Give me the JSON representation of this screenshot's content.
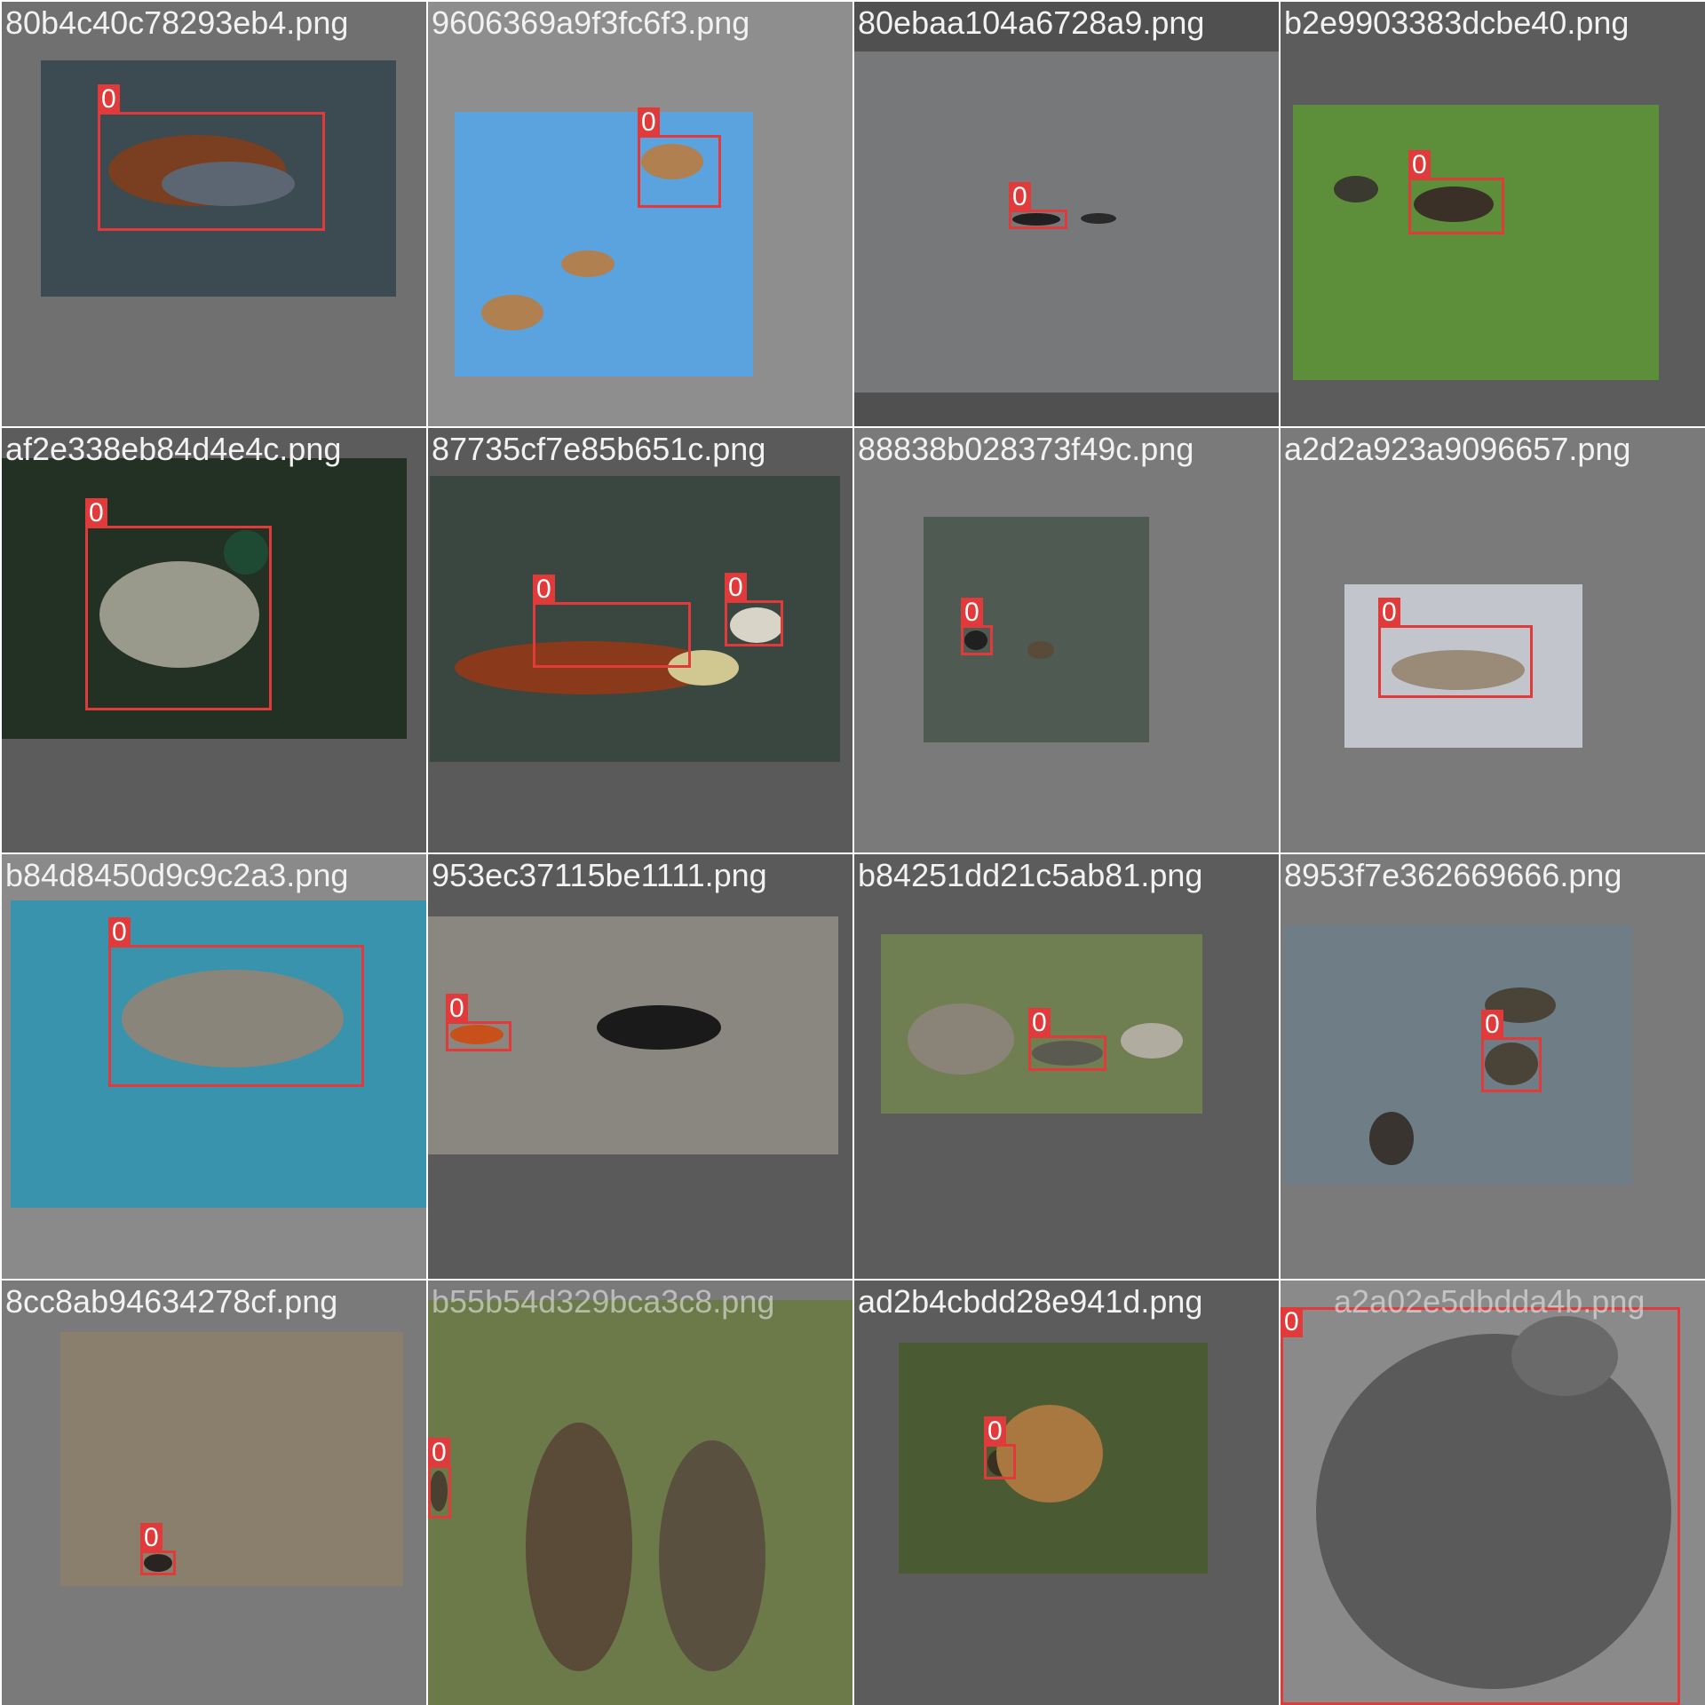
{
  "grid": {
    "columns": 4,
    "rows": 4
  },
  "tiles": [
    {
      "filename": "80b4c40c78293eb4.png",
      "labels": [
        "0"
      ],
      "background": "#707070",
      "photo_color": "#3c4a52"
    },
    {
      "filename": "9606369a9f3fc6f3.png",
      "labels": [
        "0"
      ],
      "background": "#8e8e8e",
      "photo_color": "#5ba3de"
    },
    {
      "filename": "80ebaa104a6728a9.png",
      "labels": [
        "0"
      ],
      "background": "#505050",
      "photo_color": "#76787a"
    },
    {
      "filename": "b2e9903383dcbe40.png",
      "labels": [
        "0"
      ],
      "background": "#5c5c5c",
      "photo_color": "#5d8f3a"
    },
    {
      "filename": "af2e338eb84d4e4c.png",
      "labels": [
        "0"
      ],
      "background": "#5c5c5c",
      "photo_color": "#233024"
    },
    {
      "filename": "87735cf7e85b651c.png",
      "labels": [
        "0",
        "0"
      ],
      "background": "#5a5a5a",
      "photo_color": "#3a4640"
    },
    {
      "filename": "88838b028373f49c.png",
      "labels": [
        "0"
      ],
      "background": "#7a7a7a",
      "photo_color": "#4e5a52"
    },
    {
      "filename": "a2d2a923a9096657.png",
      "labels": [
        "0"
      ],
      "background": "#7a7a7a",
      "photo_color": "#c2c6cc"
    },
    {
      "filename": "b84d8450d9c9c2a3.png",
      "labels": [
        "0"
      ],
      "background": "#8a8a8a",
      "photo_color": "#3a93ad"
    },
    {
      "filename": "953ec37115be1111.png",
      "labels": [
        "0"
      ],
      "background": "#5a5a5a",
      "photo_color": "#8a8680"
    },
    {
      "filename": "b84251dd21c5ab81.png",
      "labels": [
        "0"
      ],
      "background": "#5c5c5c",
      "photo_color": "#6f7f52"
    },
    {
      "filename": "8953f7e362669666.png",
      "labels": [
        "0"
      ],
      "background": "#7a7a7a",
      "photo_color": "#6f7d87"
    },
    {
      "filename": "8cc8ab94634278cf.png",
      "labels": [
        "0"
      ],
      "background": "#7a7a7a",
      "photo_color": "#8a7e6c"
    },
    {
      "filename": "b55b54d329bca3c8.png",
      "labels": [
        "0"
      ],
      "background": "#7a7a7a",
      "photo_color": "#6c7a4a"
    },
    {
      "filename": "ad2b4cbdd28e941d.png",
      "labels": [
        "0"
      ],
      "background": "#5c5c5c",
      "photo_color": "#4a5a32"
    },
    {
      "filename": "a2a02e5dbdda4b.png",
      "labels": [
        "0"
      ],
      "background": "#7a7a7a",
      "photo_color": "#8a8a8a"
    }
  ],
  "colors": {
    "box": "#e03a3a",
    "label_text": "#ffffff",
    "filename_text": "#f2f2f2"
  }
}
